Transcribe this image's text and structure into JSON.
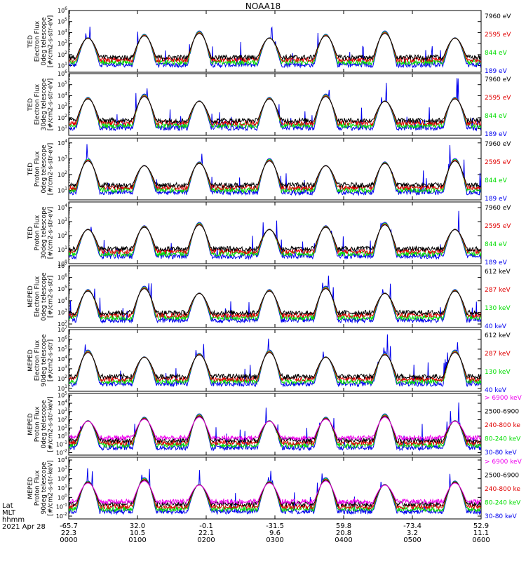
{
  "title": "NOAA18",
  "chart_data": {
    "type": "line",
    "title": "NOAA18",
    "x_range_hours": [
      0,
      6
    ],
    "y_scale": "log",
    "panels": [
      {
        "id": "ted-electron-0deg",
        "ylabel": [
          "TED",
          "Electron Flux",
          "0deg telescope",
          "[#/cm2-s-str-eV]"
        ],
        "ytick_exponents": [
          1,
          2,
          3,
          4,
          5,
          6
        ],
        "ylim_exp": [
          0.4,
          6
        ],
        "series": [
          {
            "name": "7960 eV",
            "color": "#000000"
          },
          {
            "name": "2595 eV",
            "color": "#e00000"
          },
          {
            "name": "844 eV",
            "color": "#00dd00"
          },
          {
            "name": "189 eV",
            "color": "#0000ee"
          }
        ]
      },
      {
        "id": "ted-electron-30deg",
        "ylabel": [
          "TED",
          "Electron Flux",
          "30deg telescope",
          "[#/cm2-s-str-eV]"
        ],
        "ytick_exponents": [
          1,
          2,
          3,
          4,
          5,
          6
        ],
        "ylim_exp": [
          0.4,
          6
        ],
        "series": [
          {
            "name": "7960 eV",
            "color": "#000000"
          },
          {
            "name": "2595 eV",
            "color": "#e00000"
          },
          {
            "name": "844 eV",
            "color": "#00dd00"
          },
          {
            "name": "189 eV",
            "color": "#0000ee"
          }
        ]
      },
      {
        "id": "ted-proton-0deg",
        "ylabel": [
          "TED",
          "Proton Flux",
          "0deg telescope",
          "[#/cm2-s-str-eV]"
        ],
        "ytick_exponents": [
          1,
          2,
          3,
          4
        ],
        "ylim_exp": [
          0.4,
          4.3
        ],
        "series": [
          {
            "name": "7960 eV",
            "color": "#000000"
          },
          {
            "name": "2595 eV",
            "color": "#e00000"
          },
          {
            "name": "844 eV",
            "color": "#00dd00"
          },
          {
            "name": "189 eV",
            "color": "#0000ee"
          }
        ]
      },
      {
        "id": "ted-proton-30deg",
        "ylabel": [
          "TED",
          "Proton Flux",
          "30deg telescope",
          "[#/cm2-s-str-eV]"
        ],
        "ytick_exponents": [
          0,
          1,
          2,
          3,
          4
        ],
        "ylim_exp": [
          0,
          4.4
        ],
        "series": [
          {
            "name": "7960 eV",
            "color": "#000000"
          },
          {
            "name": "2595 eV",
            "color": "#e00000"
          },
          {
            "name": "844 eV",
            "color": "#00dd00"
          },
          {
            "name": "189 eV",
            "color": "#0000ee"
          }
        ]
      },
      {
        "id": "meped-electron-0deg",
        "ylabel": [
          "MEPED",
          "Electron Flux",
          "0deg telescope",
          "[#/cm2-s-str]"
        ],
        "ytick_exponents": [
          2,
          3,
          4,
          5,
          6,
          7
        ],
        "ylim_exp": [
          1.7,
          7
        ],
        "series": [
          {
            "name": "612 keV",
            "color": "#000000"
          },
          {
            "name": "287 keV",
            "color": "#e00000"
          },
          {
            "name": "130 keV",
            "color": "#00dd00"
          },
          {
            "name": "40 keV",
            "color": "#0000ee"
          }
        ]
      },
      {
        "id": "meped-electron-90deg",
        "ylabel": [
          "MEPED",
          "Electron Flux",
          "90deg telescope",
          "[#/cm2-s-str]"
        ],
        "ytick_exponents": [
          1,
          2,
          3,
          4,
          5,
          6,
          7
        ],
        "ylim_exp": [
          0.7,
          7
        ],
        "series": [
          {
            "name": "612 keV",
            "color": "#000000"
          },
          {
            "name": "287 keV",
            "color": "#e00000"
          },
          {
            "name": "130 keV",
            "color": "#00dd00"
          },
          {
            "name": "40 keV",
            "color": "#0000ee"
          }
        ]
      },
      {
        "id": "meped-proton-0deg",
        "ylabel": [
          "MEPED",
          "Proton Flux",
          "0deg telescope",
          "[#/cm2-s-str-keV]"
        ],
        "ytick_exponents": [
          -2,
          -1,
          0,
          1,
          2,
          3,
          4,
          5
        ],
        "ylim_exp": [
          -2.3,
          5.2
        ],
        "series": [
          {
            "name": "> 6900 keV",
            "color": "#ee00ee"
          },
          {
            "name": "2500-6900",
            "color": "#000000"
          },
          {
            "name": "240-800 ke",
            "color": "#e00000"
          },
          {
            "name": "80-240 keV",
            "color": "#00dd00"
          },
          {
            "name": "30-80 keV",
            "color": "#0000ee"
          }
        ]
      },
      {
        "id": "meped-proton-90deg",
        "ylabel": [
          "MEPED",
          "Proton Flux",
          "90deg telescope",
          "[#/cm2-s-str-keV]"
        ],
        "ytick_exponents": [
          -2,
          -1,
          0,
          1,
          2,
          3,
          4
        ],
        "ylim_exp": [
          -2.3,
          4.3
        ],
        "series": [
          {
            "name": "> 6900 keV",
            "color": "#ee00ee"
          },
          {
            "name": "2500-6900",
            "color": "#000000"
          },
          {
            "name": "240-800 ke",
            "color": "#e00000"
          },
          {
            "name": "80-240 keV",
            "color": "#00dd00"
          },
          {
            "name": "30-80 keV",
            "color": "#0000ee"
          }
        ]
      }
    ],
    "x_axis": {
      "row_labels": [
        "Lat",
        "MLT",
        "hhmm"
      ],
      "date": "2021 Apr 28",
      "ticks": [
        {
          "hours": 0,
          "lat": "-65.7",
          "mlt": "22.3",
          "hhmm": "0000"
        },
        {
          "hours": 1,
          "lat": "32.0",
          "mlt": "10.5",
          "hhmm": "0100"
        },
        {
          "hours": 2,
          "lat": "-0.1",
          "mlt": "22.1",
          "hhmm": "0200"
        },
        {
          "hours": 3,
          "lat": "-31.5",
          "mlt": "9.6",
          "hhmm": "0300"
        },
        {
          "hours": 4,
          "lat": "59.8",
          "mlt": "20.8",
          "hhmm": "0400"
        },
        {
          "hours": 5,
          "lat": "-73.4",
          "mlt": "3.2",
          "hhmm": "0500"
        },
        {
          "hours": 6,
          "lat": "52.9",
          "mlt": "11.1",
          "hhmm": "0600"
        }
      ]
    }
  }
}
